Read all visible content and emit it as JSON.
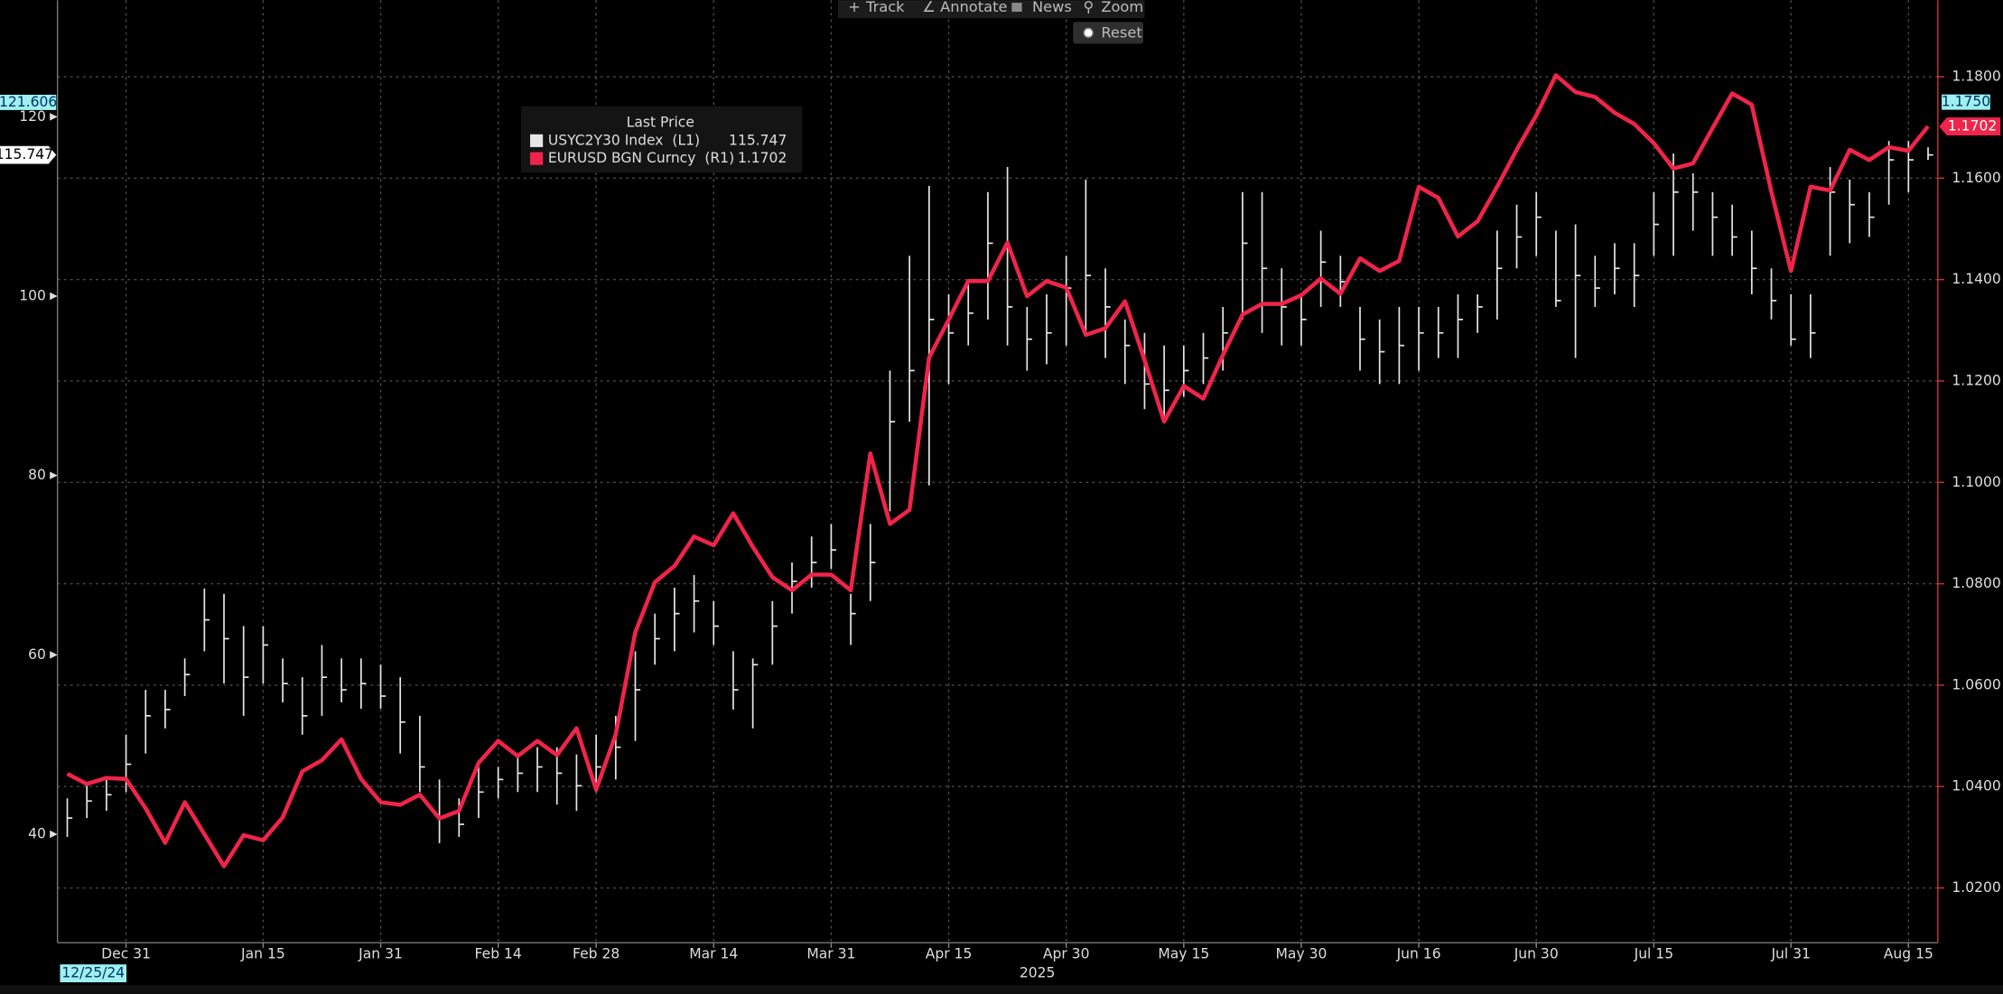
{
  "chart_data": {
    "type": "ohlc",
    "legend_title": "Last Price",
    "start_date": "12/25/24",
    "year_label": "2025",
    "categories": [
      null,
      null,
      null,
      "Dec 31",
      null,
      null,
      null,
      null,
      null,
      null,
      "Jan 15",
      null,
      null,
      null,
      null,
      null,
      "Jan 31",
      null,
      null,
      null,
      null,
      null,
      "Feb 14",
      null,
      null,
      null,
      null,
      "Feb 28",
      null,
      null,
      null,
      null,
      null,
      "Mar 14",
      null,
      null,
      null,
      null,
      null,
      "Mar 31",
      null,
      null,
      null,
      null,
      null,
      "Apr 15",
      null,
      null,
      null,
      null,
      null,
      "Apr 30",
      null,
      null,
      null,
      null,
      null,
      "May 15",
      null,
      null,
      null,
      null,
      null,
      "May 30",
      null,
      null,
      null,
      null,
      null,
      "Jun 16",
      null,
      null,
      null,
      null,
      null,
      "Jun 30",
      null,
      null,
      null,
      null,
      null,
      "Jul 15",
      null,
      null,
      null,
      null,
      null,
      null,
      "Jul 31",
      null,
      null,
      null,
      null,
      null,
      "Aug 15",
      null
    ],
    "series": [
      {
        "name": "USYC2Y30 Index  (L1)",
        "type": "ohlc",
        "color": "#e6e6e6",
        "last_price": 115.747,
        "high": [
          44.0,
          45.4,
          46.1,
          51.1,
          56.1,
          56.1,
          59.6,
          67.4,
          66.8,
          63.2,
          63.2,
          59.6,
          57.5,
          61.1,
          59.6,
          59.6,
          58.9,
          57.5,
          53.2,
          46.1,
          44.0,
          47.5,
          47.5,
          48.9,
          49.7,
          49.7,
          48.9,
          51.1,
          53.2,
          60.4,
          64.6,
          67.5,
          68.9,
          66.0,
          60.4,
          59.6,
          66.0,
          70.3,
          73.2,
          74.6,
          66.8,
          74.6,
          91.7,
          104.5,
          112.3,
          100.2,
          101.6,
          111.6,
          114.4,
          98.8,
          100.2,
          104.5,
          113.0,
          103.1,
          97.4,
          95.9,
          94.5,
          94.5,
          95.9,
          98.8,
          111.6,
          111.6,
          103.1,
          100.2,
          107.3,
          104.5,
          98.8,
          97.4,
          98.8,
          98.8,
          98.8,
          100.2,
          100.2,
          107.3,
          110.2,
          111.6,
          107.3,
          108.0,
          104.5,
          105.9,
          105.9,
          111.6,
          115.9,
          113.7,
          111.6,
          110.2,
          107.3,
          103.1,
          100.2,
          100.2,
          114.4,
          113.0,
          111.6,
          117.3,
          117.3,
          116.6
        ],
        "low": [
          39.7,
          41.8,
          42.6,
          44.7,
          49.0,
          51.8,
          55.4,
          60.4,
          56.8,
          53.2,
          56.8,
          54.7,
          51.1,
          53.2,
          54.7,
          54.0,
          54.0,
          49.0,
          44.7,
          39.0,
          39.7,
          41.8,
          44.0,
          44.7,
          44.7,
          43.3,
          42.6,
          44.7,
          46.1,
          50.4,
          58.9,
          60.4,
          62.5,
          61.1,
          53.9,
          51.8,
          58.9,
          64.6,
          67.5,
          69.6,
          61.1,
          66.0,
          76.0,
          86.0,
          78.9,
          90.2,
          94.5,
          97.4,
          94.5,
          91.7,
          92.4,
          94.5,
          95.9,
          93.1,
          90.2,
          87.4,
          86.0,
          88.8,
          90.2,
          91.7,
          97.4,
          95.9,
          94.5,
          94.5,
          98.8,
          98.8,
          91.7,
          90.2,
          90.2,
          91.7,
          93.1,
          93.1,
          95.9,
          97.4,
          103.1,
          104.5,
          98.8,
          93.1,
          98.8,
          100.2,
          98.8,
          104.5,
          104.5,
          107.3,
          104.5,
          104.5,
          100.2,
          97.4,
          94.5,
          93.1,
          104.5,
          105.9,
          106.6,
          110.2,
          111.6,
          115.2
        ],
        "close": [
          41.8,
          43.7,
          44.4,
          47.8,
          53.2,
          53.9,
          57.8,
          63.9,
          61.8,
          57.5,
          61.1,
          56.8,
          53.2,
          57.5,
          56.1,
          56.8,
          55.4,
          52.5,
          47.5,
          41.8,
          41.1,
          44.7,
          46.1,
          46.8,
          47.5,
          46.8,
          45.4,
          47.5,
          49.7,
          56.1,
          61.8,
          64.6,
          66.0,
          63.2,
          56.1,
          58.9,
          63.2,
          68.2,
          70.3,
          71.7,
          64.6,
          70.3,
          86.0,
          91.7,
          97.4,
          95.9,
          98.1,
          105.9,
          98.8,
          95.2,
          95.9,
          100.9,
          102.3,
          98.8,
          94.5,
          90.2,
          89.5,
          91.7,
          93.1,
          95.9,
          105.9,
          103.1,
          98.8,
          97.4,
          103.8,
          101.6,
          95.2,
          93.8,
          94.5,
          95.9,
          95.9,
          97.4,
          98.8,
          103.1,
          106.6,
          108.8,
          99.5,
          102.3,
          100.9,
          103.1,
          102.3,
          108.0,
          111.6,
          111.6,
          108.8,
          106.6,
          103.1,
          99.5,
          95.2,
          95.9,
          111.6,
          110.2,
          108.8,
          115.2,
          115.2,
          115.747
        ]
      },
      {
        "name": "EURUSD BGN Curncy  (R1)",
        "type": "line",
        "axis": "y2",
        "color": "#f0244a",
        "last_price": 1.1702,
        "values": [
          1.0425,
          1.0405,
          1.0417,
          1.0415,
          1.0357,
          1.0289,
          1.0369,
          1.0306,
          1.0243,
          1.0304,
          1.0294,
          1.0339,
          1.043,
          1.0452,
          1.0493,
          1.0415,
          1.0369,
          1.0364,
          1.0384,
          1.0337,
          1.0352,
          1.0447,
          1.049,
          1.046,
          1.049,
          1.0462,
          1.0515,
          1.0394,
          1.0503,
          1.0704,
          1.0803,
          1.0835,
          1.0893,
          1.0876,
          1.0939,
          1.0873,
          1.0813,
          1.0787,
          1.0818,
          1.0818,
          1.0787,
          1.1057,
          1.0918,
          1.0946,
          1.1246,
          1.1321,
          1.1397,
          1.1397,
          1.1473,
          1.1367,
          1.1397,
          1.1384,
          1.1291,
          1.1304,
          1.1357,
          1.1241,
          1.112,
          1.119,
          1.1165,
          1.1251,
          1.1331,
          1.1352,
          1.1352,
          1.1369,
          1.1402,
          1.1372,
          1.1442,
          1.1417,
          1.1437,
          1.1583,
          1.1561,
          1.1485,
          1.1515,
          1.1583,
          1.1656,
          1.1724,
          1.1803,
          1.177,
          1.176,
          1.1729,
          1.1707,
          1.1669,
          1.1619,
          1.1629,
          1.1699,
          1.1767,
          1.1745,
          1.1573,
          1.1417,
          1.1583,
          1.1576,
          1.1656,
          1.1636,
          1.1661,
          1.1654,
          1.1702
        ]
      }
    ],
    "ylim": [
      27.9,
      133
    ],
    "yticks": [
      40,
      60,
      80,
      100,
      120
    ],
    "y2lim": [
      1.0092,
      1.1951
    ],
    "y2ticks": [
      {
        "value": 1.02,
        "label": "1.0200"
      },
      {
        "value": 1.04,
        "label": "1.0400"
      },
      {
        "value": 1.06,
        "label": "1.0600"
      },
      {
        "value": 1.08,
        "label": "1.0800"
      },
      {
        "value": 1.1,
        "label": "1.1000"
      },
      {
        "value": 1.12,
        "label": "1.1200"
      },
      {
        "value": 1.14,
        "label": "1.1400"
      },
      {
        "value": 1.16,
        "label": "1.1600"
      },
      {
        "value": 1.18,
        "label": "1.1800"
      }
    ],
    "y_markers": [
      121.606
    ],
    "y2_markers": [
      {
        "value": 1.175,
        "label": "1.1750"
      }
    ],
    "grid": true
  },
  "toolbar": {
    "items": [
      "Track",
      "Annotate",
      "News",
      "Zoom"
    ],
    "reset": "Reset"
  }
}
